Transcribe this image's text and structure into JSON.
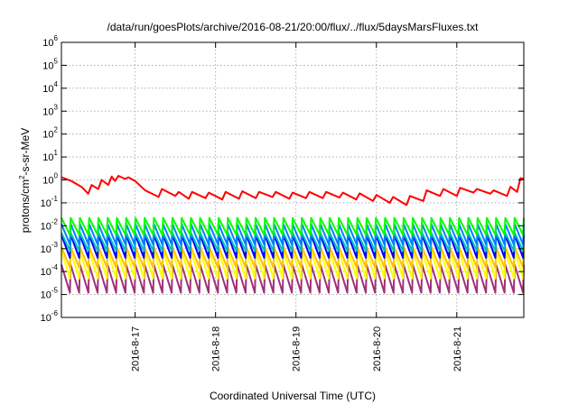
{
  "chart_data": {
    "type": "line",
    "title": "/data/run/goesPlots/archive/2016-08-21/20:00/flux/../flux/5daysMarsFluxes.txt",
    "xlabel": "Coordinated Universal Time (UTC)",
    "ylabel": "protons/cm²-s-sr-MeV",
    "yscale": "log",
    "ylim": [
      1e-06,
      1000000.0
    ],
    "xlim": [
      "2016-08-16T02:00",
      "2016-08-21T20:00"
    ],
    "grid": true,
    "yticks": [
      {
        "base": "10",
        "exp": "-6"
      },
      {
        "base": "10",
        "exp": "-5"
      },
      {
        "base": "10",
        "exp": "-4"
      },
      {
        "base": "10",
        "exp": "-3"
      },
      {
        "base": "10",
        "exp": "-2"
      },
      {
        "base": "10",
        "exp": "-1"
      },
      {
        "base": "10",
        "exp": "0"
      },
      {
        "base": "10",
        "exp": "1"
      },
      {
        "base": "10",
        "exp": "2"
      },
      {
        "base": "10",
        "exp": "3"
      },
      {
        "base": "10",
        "exp": "4"
      },
      {
        "base": "10",
        "exp": "5"
      },
      {
        "base": "10",
        "exp": "6"
      }
    ],
    "xticks": [
      "2016-8-17",
      "2016-8-18",
      "2016-8-19",
      "2016-8-20",
      "2016-8-21"
    ],
    "series": [
      {
        "color": "#ff0000",
        "x": [
          "2016-08-16T02:00",
          "2016-08-16T05:00",
          "2016-08-16T08:00",
          "2016-08-16T10:00",
          "2016-08-16T11:00",
          "2016-08-16T13:00",
          "2016-08-16T14:00",
          "2016-08-16T16:00",
          "2016-08-16T17:00",
          "2016-08-16T18:00",
          "2016-08-16T19:00",
          "2016-08-16T21:00",
          "2016-08-16T22:00",
          "2016-08-17T00:00",
          "2016-08-17T03:00",
          "2016-08-17T07:00",
          "2016-08-17T08:00",
          "2016-08-17T12:00",
          "2016-08-17T13:00",
          "2016-08-17T16:00",
          "2016-08-17T17:00",
          "2016-08-17T21:00",
          "2016-08-17T22:00",
          "2016-08-18T02:00",
          "2016-08-18T03:00",
          "2016-08-18T07:00",
          "2016-08-18T08:00",
          "2016-08-18T12:00",
          "2016-08-18T13:00",
          "2016-08-18T17:00",
          "2016-08-18T18:00",
          "2016-08-18T22:00",
          "2016-08-18T23:00",
          "2016-08-19T03:00",
          "2016-08-19T04:00",
          "2016-08-19T08:00",
          "2016-08-19T09:00",
          "2016-08-19T13:00",
          "2016-08-19T14:00",
          "2016-08-19T18:00",
          "2016-08-19T19:00",
          "2016-08-19T23:00",
          "2016-08-20T00:00",
          "2016-08-20T04:00",
          "2016-08-20T05:00",
          "2016-08-20T09:00",
          "2016-08-20T10:00",
          "2016-08-20T14:00",
          "2016-08-20T15:00",
          "2016-08-20T19:00",
          "2016-08-20T20:00",
          "2016-08-21T00:00",
          "2016-08-21T01:00",
          "2016-08-21T05:00",
          "2016-08-21T06:00",
          "2016-08-21T10:00",
          "2016-08-21T11:00",
          "2016-08-21T15:00",
          "2016-08-21T16:00",
          "2016-08-21T18:00",
          "2016-08-21T19:00",
          "2016-08-21T20:00"
        ],
        "values": [
          1.3,
          0.9,
          0.5,
          0.25,
          0.6,
          0.4,
          1.0,
          0.6,
          1.4,
          0.9,
          1.5,
          1.1,
          1.3,
          0.9,
          0.35,
          0.18,
          0.4,
          0.2,
          0.3,
          0.15,
          0.3,
          0.16,
          0.28,
          0.14,
          0.3,
          0.15,
          0.32,
          0.16,
          0.3,
          0.18,
          0.3,
          0.15,
          0.28,
          0.16,
          0.3,
          0.16,
          0.3,
          0.17,
          0.28,
          0.14,
          0.26,
          0.12,
          0.22,
          0.1,
          0.18,
          0.08,
          0.2,
          0.12,
          0.35,
          0.2,
          0.4,
          0.2,
          0.45,
          0.28,
          0.4,
          0.25,
          0.35,
          0.2,
          0.5,
          0.3,
          1.2,
          1.1
        ]
      },
      {
        "color": "#00ff00",
        "sawtooth": {
          "low": 0.004,
          "high": 0.022,
          "teeth": 50
        }
      },
      {
        "color": "#0080ff",
        "sawtooth": {
          "low": 0.0015,
          "high": 0.012,
          "teeth": 50
        }
      },
      {
        "color": "#00c0c0",
        "sawtooth": {
          "low": 0.0008,
          "high": 0.005,
          "teeth": 50
        }
      },
      {
        "color": "#0000ff",
        "sawtooth": {
          "low": 0.0004,
          "high": 0.004,
          "teeth": 50
        }
      },
      {
        "color": "#ffc000",
        "sawtooth": {
          "low": 0.00015,
          "high": 0.0012,
          "teeth": 50
        }
      },
      {
        "color": "#ffff00",
        "sawtooth": {
          "low": 5e-05,
          "high": 0.0008,
          "teeth": 50
        }
      },
      {
        "color": "#a0307a",
        "sawtooth": {
          "low": 1.2e-05,
          "high": 0.0002,
          "teeth": 50
        }
      }
    ]
  }
}
